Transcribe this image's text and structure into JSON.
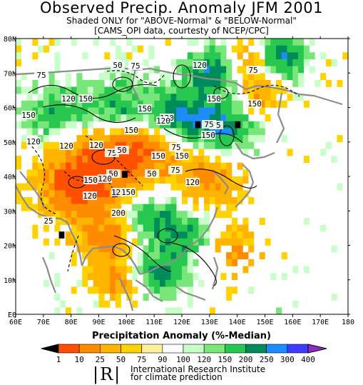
{
  "header": {
    "title": "Observed Precip. Anomaly JFM 2001",
    "subtitle": "Shaded ONLY for \"ABOVE-Normal\" & \"BELOW-Normal\"",
    "credit": "[CAMS_OPI data, courtesty of NCEP/CPC]"
  },
  "map": {
    "lon_ticks": [
      "60E",
      "70E",
      "80E",
      "90E",
      "100E",
      "110E",
      "120E",
      "130E",
      "140E",
      "150E",
      "160E",
      "170E",
      "180"
    ],
    "lat_ticks": [
      "EQ",
      "10N",
      "20N",
      "30N",
      "40N",
      "50N",
      "60N",
      "70N",
      "80N"
    ],
    "contour_labels": [
      "75",
      "50",
      "75",
      "120",
      "75",
      "120",
      "150",
      "150",
      "120",
      "75",
      "150",
      "120",
      "120",
      "150",
      "75",
      "150",
      "75",
      "150",
      "150",
      "120",
      "150",
      "120",
      "50",
      "75",
      "120",
      "150",
      "50",
      "150",
      "150",
      "200",
      "25",
      "120",
      "75",
      "50",
      "120",
      "120"
    ]
  },
  "legend": {
    "title": "Precipitation Anomaly (%-Median)",
    "tick_labels": [
      "1",
      "10",
      "25",
      "50",
      "75",
      "90",
      "100",
      "120",
      "150",
      "200",
      "250",
      "300",
      "400"
    ],
    "colors": [
      "#000000",
      "#ff5000",
      "#ff8c00",
      "#ffb400",
      "#ffd200",
      "#fff0a0",
      "#ffffff",
      "#c8ffc8",
      "#78e678",
      "#28c850",
      "#008c5a",
      "#1e8cff",
      "#3c3cff",
      "#9628c8"
    ]
  },
  "footer": {
    "logo": "|R|",
    "line1": "International Research Institute",
    "line2": "for climate prediction"
  }
}
